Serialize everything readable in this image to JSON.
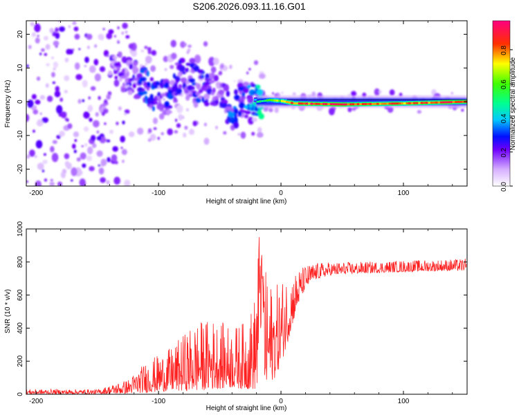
{
  "title": "S206.2026.093.11.16.G01",
  "chart_data": [
    {
      "type": "heatmap",
      "xlabel": "Height of straight line (km)",
      "ylabel": "Frequency (Hz)",
      "xlim": [
        -208,
        152
      ],
      "ylim": [
        -25,
        24
      ],
      "xticks": [
        -200,
        -100,
        0,
        100
      ],
      "xtick_labels": [
        "-200",
        "-100",
        "0",
        "100"
      ],
      "yticks": [
        -20,
        -10,
        0,
        10,
        20
      ],
      "ytick_labels": [
        "-20",
        "-10",
        "0",
        "10",
        "20"
      ],
      "colorbar": {
        "label": "Normalized spectral amplitude",
        "range": [
          0,
          0.97
        ],
        "ticks": [
          0,
          0.2,
          0.4,
          0.6,
          0.8
        ],
        "tick_labels": [
          "0.0",
          "0.2",
          "0.4",
          "0.6",
          "0.8"
        ]
      },
      "ridge": [
        {
          "x": -130,
          "f": 9,
          "a": 0.2
        },
        {
          "x": -110,
          "f": 4.5,
          "a": 0.35
        },
        {
          "x": -100,
          "f": 2,
          "a": 0.3
        },
        {
          "x": -90,
          "f": 1.5,
          "a": 0.3
        },
        {
          "x": -80,
          "f": 9,
          "a": 0.25
        },
        {
          "x": -70,
          "f": 6,
          "a": 0.3
        },
        {
          "x": -60,
          "f": 3,
          "a": 0.3
        },
        {
          "x": -50,
          "f": 4,
          "a": 0.25
        },
        {
          "x": -40,
          "f": -4,
          "a": 0.35
        },
        {
          "x": -30,
          "f": 3,
          "a": 0.3
        },
        {
          "x": -20,
          "f": 0,
          "a": 0.5
        },
        {
          "x": -10,
          "f": 0.5,
          "a": 0.6
        },
        {
          "x": 0,
          "f": 0.2,
          "a": 0.75
        },
        {
          "x": 10,
          "f": -0.5,
          "a": 0.9
        },
        {
          "x": 50,
          "f": -0.8,
          "a": 0.95
        },
        {
          "x": 100,
          "f": -0.5,
          "a": 0.85
        },
        {
          "x": 150,
          "f": 0,
          "a": 0.97
        }
      ]
    },
    {
      "type": "line",
      "xlabel": "Height of straight line (km)",
      "ylabel": "SNR (10 * v/v)",
      "xlim": [
        -208,
        152
      ],
      "ylim": [
        0,
        1000
      ],
      "xticks": [
        -200,
        -100,
        0,
        100
      ],
      "xtick_labels": [
        "-200",
        "-100",
        "0",
        "100"
      ],
      "yticks": [
        0,
        200,
        400,
        600,
        800,
        1000
      ],
      "ytick_labels": [
        "0",
        "200",
        "400",
        "600",
        "800",
        "1000"
      ],
      "series": [
        {
          "name": "SNR",
          "color": "#ff2020",
          "envelope_x": [
            -208,
            -150,
            -125,
            -110,
            -90,
            -70,
            -55,
            -40,
            -30,
            -22,
            -18,
            -15,
            -10,
            -5,
            0,
            5,
            10,
            15,
            20,
            25,
            30,
            40,
            60,
            100,
            152
          ],
          "envelope_min": [
            2,
            2,
            5,
            10,
            20,
            20,
            30,
            40,
            30,
            30,
            20,
            30,
            60,
            100,
            180,
            300,
            440,
            560,
            640,
            680,
            700,
            720,
            730,
            740,
            750
          ],
          "envelope_max": [
            30,
            30,
            90,
            200,
            280,
            440,
            460,
            410,
            440,
            560,
            1000,
            800,
            700,
            650,
            700,
            730,
            740,
            760,
            780,
            790,
            795,
            800,
            800,
            810,
            820
          ]
        }
      ]
    }
  ]
}
